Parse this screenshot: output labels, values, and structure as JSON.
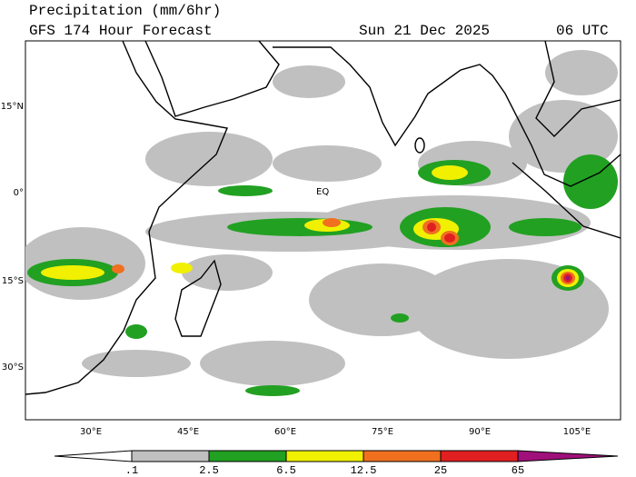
{
  "header": {
    "title": "Precipitation (mm/6hr)",
    "subtitle": "GFS 174 Hour Forecast",
    "date": "Sun 21 Dec 2025",
    "time": "06 UTC"
  },
  "map": {
    "lat_labels": [
      "15°N",
      "0°",
      "15°S",
      "30°S"
    ],
    "lon_labels": [
      "30°E",
      "45°E",
      "60°E",
      "75°E",
      "90°E",
      "105°E"
    ],
    "equator_label": "EQ"
  },
  "colorbar": {
    "labels": [
      ".1",
      "2.5",
      "6.5",
      "12.5",
      "25",
      "65"
    ]
  }
}
